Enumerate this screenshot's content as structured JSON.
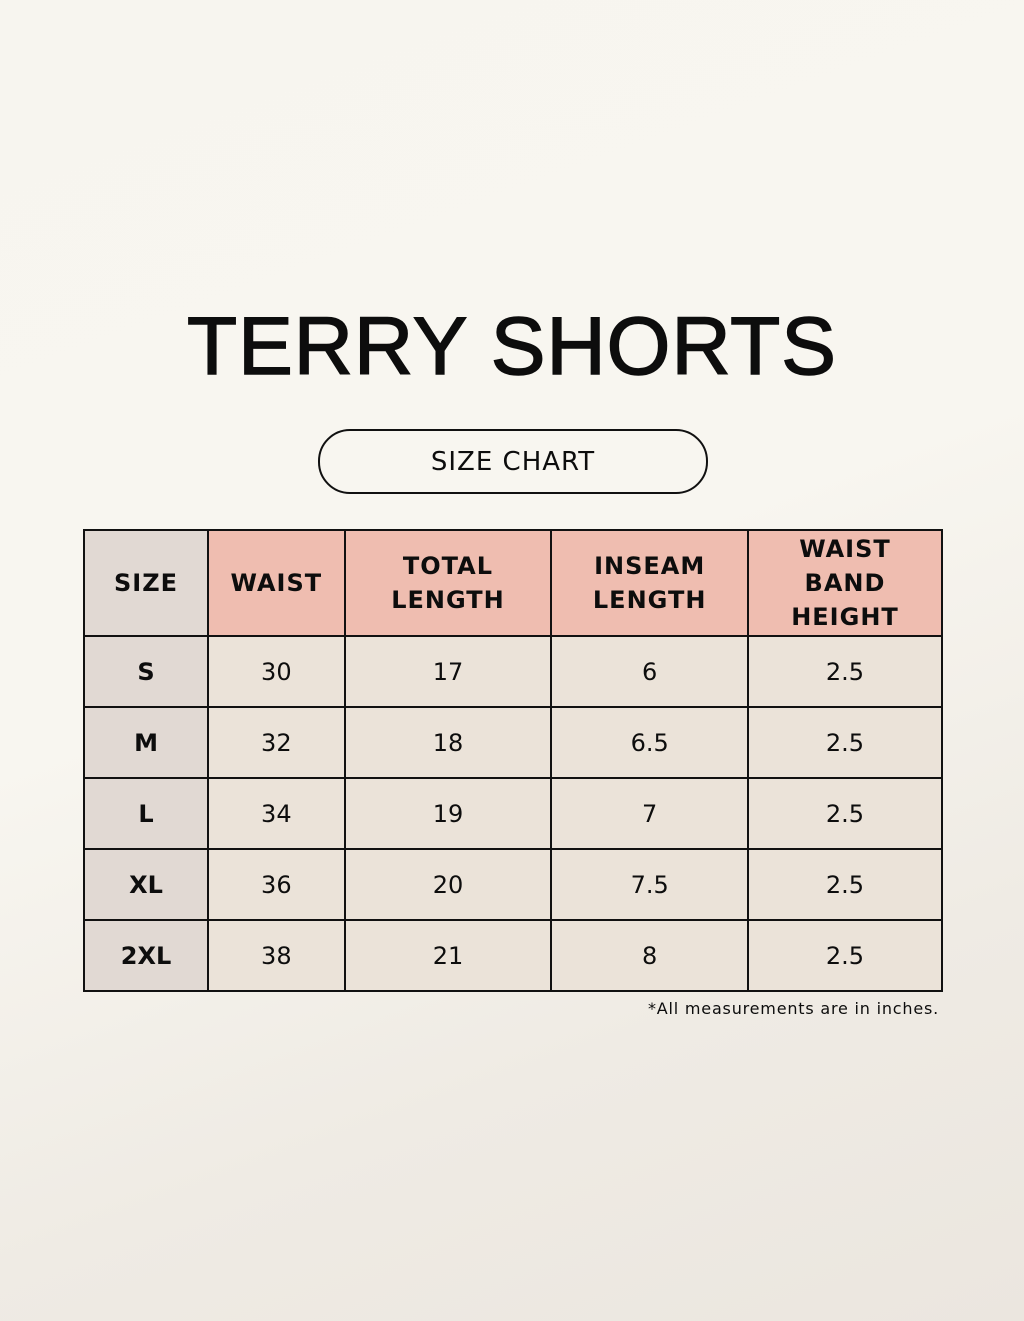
{
  "title": "TERRY SHORTS",
  "subtitle": "SIZE CHART",
  "table": {
    "headers": [
      "SIZE",
      "WAIST",
      "TOTAL LENGTH",
      "INSEAM LENGTH",
      "WAIST BAND HEIGHT"
    ],
    "rows": [
      [
        "S",
        "30",
        "17",
        "6",
        "2.5"
      ],
      [
        "M",
        "32",
        "18",
        "6.5",
        "2.5"
      ],
      [
        "L",
        "34",
        "19",
        "7",
        "2.5"
      ],
      [
        "XL",
        "36",
        "20",
        "7.5",
        "2.5"
      ],
      [
        "2XL",
        "38",
        "21",
        "8",
        "2.5"
      ]
    ]
  },
  "footnote": "*All measurements are in inches.",
  "colors": {
    "header_accent": "#efbdb0",
    "size_column": "#e1d9d3",
    "cell_bg": "#ebe3d9"
  }
}
